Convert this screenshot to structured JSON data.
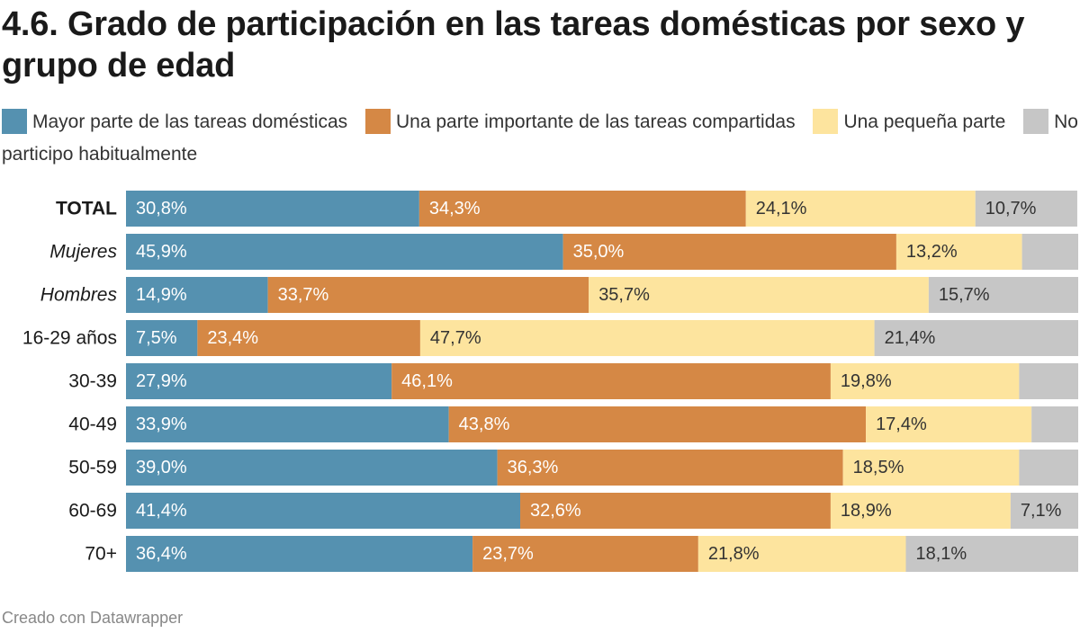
{
  "title": "4.6. Grado de participación en las tareas domésticas por sexo y grupo de edad",
  "footer": "Creado con Datawrapper",
  "colors": {
    "mayor": "#5591b0",
    "importante": "#d58845",
    "pequena": "#fde49e",
    "no": "#c6c6c6"
  },
  "chart_data": {
    "type": "bar",
    "orientation": "horizontal",
    "stacked": true,
    "percent_axis": [
      0,
      100
    ],
    "legend_position": "top",
    "categories": [
      "TOTAL",
      "Mujeres",
      "Hombres",
      "16-29 años",
      "30-39",
      "40-49",
      "50-59",
      "60-69",
      "70+"
    ],
    "category_styles": [
      "bold",
      "italic",
      "italic",
      "normal",
      "normal",
      "normal",
      "normal",
      "normal",
      "normal"
    ],
    "series": [
      {
        "name": "Mayor parte de las tareas domésticas",
        "color_key": "mayor",
        "values": [
          30.8,
          45.9,
          14.9,
          7.5,
          27.9,
          33.9,
          39.0,
          41.4,
          36.4
        ],
        "labels": [
          "30,8%",
          "45,9%",
          "14,9%",
          "7,5%",
          "27,9%",
          "33,9%",
          "39,0%",
          "41,4%",
          "36,4%"
        ]
      },
      {
        "name": "Una parte importante de las tareas compartidas",
        "color_key": "importante",
        "values": [
          34.3,
          35.0,
          33.7,
          23.4,
          46.1,
          43.8,
          36.3,
          32.6,
          23.7
        ],
        "labels": [
          "34,3%",
          "35,0%",
          "33,7%",
          "23,4%",
          "46,1%",
          "43,8%",
          "36,3%",
          "32,6%",
          "23,7%"
        ]
      },
      {
        "name": "Una pequeña parte",
        "color_key": "pequena",
        "values": [
          24.1,
          13.2,
          35.7,
          47.7,
          19.8,
          17.4,
          18.5,
          18.9,
          21.8
        ],
        "labels": [
          "24,1%",
          "13,2%",
          "35,7%",
          "47,7%",
          "19,8%",
          "17,4%",
          "18,5%",
          "18,9%",
          "21,8%"
        ]
      },
      {
        "name": "No participo habitualmente",
        "color_key": "no",
        "values": [
          10.7,
          5.9,
          15.7,
          21.4,
          6.2,
          4.9,
          6.2,
          7.1,
          18.1
        ],
        "labels": [
          "10,7%",
          "",
          "15,7%",
          "21,4%",
          "",
          "",
          "",
          "7,1%",
          "18,1%"
        ]
      }
    ]
  }
}
